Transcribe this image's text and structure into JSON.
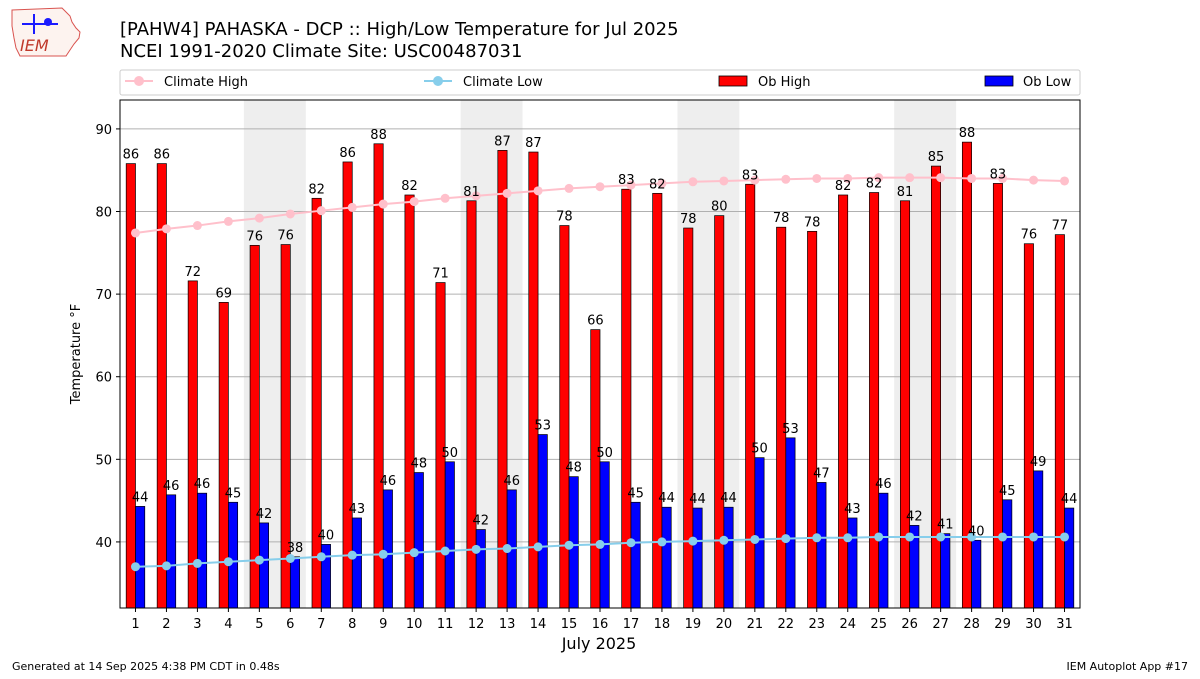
{
  "logo": {
    "text": "IEM"
  },
  "header": {
    "title_line1": "[PAHW4] PAHASKA - DCP :: High/Low Temperature for Jul 2025",
    "title_line2": "NCEI 1991-2020 Climate Site: USC00487031"
  },
  "footer": {
    "left": "Generated at 14 Sep 2025 4:38 PM CDT in 0.48s",
    "right": "IEM Autoplot App #17"
  },
  "colors": {
    "climate_high": "#ffc0cb",
    "climate_low": "#87ceeb",
    "ob_high": "#ff0000",
    "ob_low": "#0000ff",
    "weekend_band": "#eeeeee",
    "grid": "#b0b0b0"
  },
  "chart_data": {
    "type": "bar",
    "title": "[PAHW4] PAHASKA - DCP :: High/Low Temperature for Jul 2025",
    "xlabel": "July 2025",
    "ylabel": "Temperature °F",
    "ylim": [
      32,
      93.5
    ],
    "yticks": [
      40,
      50,
      60,
      70,
      80,
      90
    ],
    "grid": true,
    "legend_position": "top",
    "categories": [
      "1",
      "2",
      "3",
      "4",
      "5",
      "6",
      "7",
      "8",
      "9",
      "10",
      "11",
      "12",
      "13",
      "14",
      "15",
      "16",
      "17",
      "18",
      "19",
      "20",
      "21",
      "22",
      "23",
      "24",
      "25",
      "26",
      "27",
      "28",
      "29",
      "30",
      "31"
    ],
    "shaded_days": [
      [
        5,
        6
      ],
      [
        12,
        13
      ],
      [
        19,
        20
      ],
      [
        26,
        27
      ]
    ],
    "series": [
      {
        "name": "Climate High",
        "kind": "line",
        "values": [
          77.4,
          77.9,
          78.3,
          78.8,
          79.2,
          79.7,
          80.1,
          80.5,
          80.9,
          81.2,
          81.6,
          81.9,
          82.2,
          82.5,
          82.8,
          83.0,
          83.2,
          83.4,
          83.6,
          83.7,
          83.8,
          83.9,
          84.0,
          84.0,
          84.1,
          84.1,
          84.1,
          84.0,
          84.0,
          83.8,
          83.7
        ]
      },
      {
        "name": "Climate Low",
        "kind": "line",
        "values": [
          37.0,
          37.1,
          37.4,
          37.6,
          37.8,
          38.0,
          38.2,
          38.4,
          38.5,
          38.7,
          38.9,
          39.1,
          39.2,
          39.4,
          39.6,
          39.7,
          39.9,
          40.0,
          40.1,
          40.2,
          40.3,
          40.4,
          40.5,
          40.5,
          40.6,
          40.6,
          40.6,
          40.6,
          40.6,
          40.6,
          40.6
        ]
      },
      {
        "name": "Ob High",
        "kind": "bar",
        "values": [
          86,
          86,
          72,
          69,
          76,
          76,
          82,
          86,
          88,
          82,
          71,
          81,
          87,
          87,
          78,
          66,
          83,
          82,
          78,
          80,
          83,
          78,
          78,
          82,
          82,
          81,
          85,
          88,
          83,
          76,
          77
        ]
      },
      {
        "name": "Ob Low",
        "kind": "bar",
        "values": [
          44,
          46,
          46,
          45,
          42,
          38,
          40,
          43,
          46,
          48,
          50,
          42,
          46,
          53,
          48,
          50,
          45,
          44,
          44,
          44,
          50,
          53,
          47,
          43,
          46,
          42,
          41,
          40,
          45,
          49,
          44
        ]
      }
    ],
    "bar_values_exact": {
      "Ob High": [
        85.8,
        85.8,
        71.6,
        69.0,
        75.9,
        76.0,
        81.6,
        86.0,
        88.2,
        82.0,
        71.4,
        81.3,
        87.4,
        87.2,
        78.3,
        65.7,
        82.7,
        82.2,
        78.0,
        79.5,
        83.3,
        78.1,
        77.6,
        82.0,
        82.3,
        81.3,
        85.5,
        88.4,
        83.4,
        76.1,
        77.2
      ],
      "Ob Low": [
        44.3,
        45.7,
        45.9,
        44.8,
        42.3,
        38.2,
        39.7,
        42.9,
        46.3,
        48.4,
        49.7,
        41.5,
        46.3,
        53.0,
        47.9,
        49.7,
        44.8,
        44.2,
        44.1,
        44.2,
        50.2,
        52.6,
        47.2,
        42.9,
        45.9,
        42.0,
        41.0,
        40.2,
        45.1,
        48.6,
        44.1
      ]
    }
  }
}
